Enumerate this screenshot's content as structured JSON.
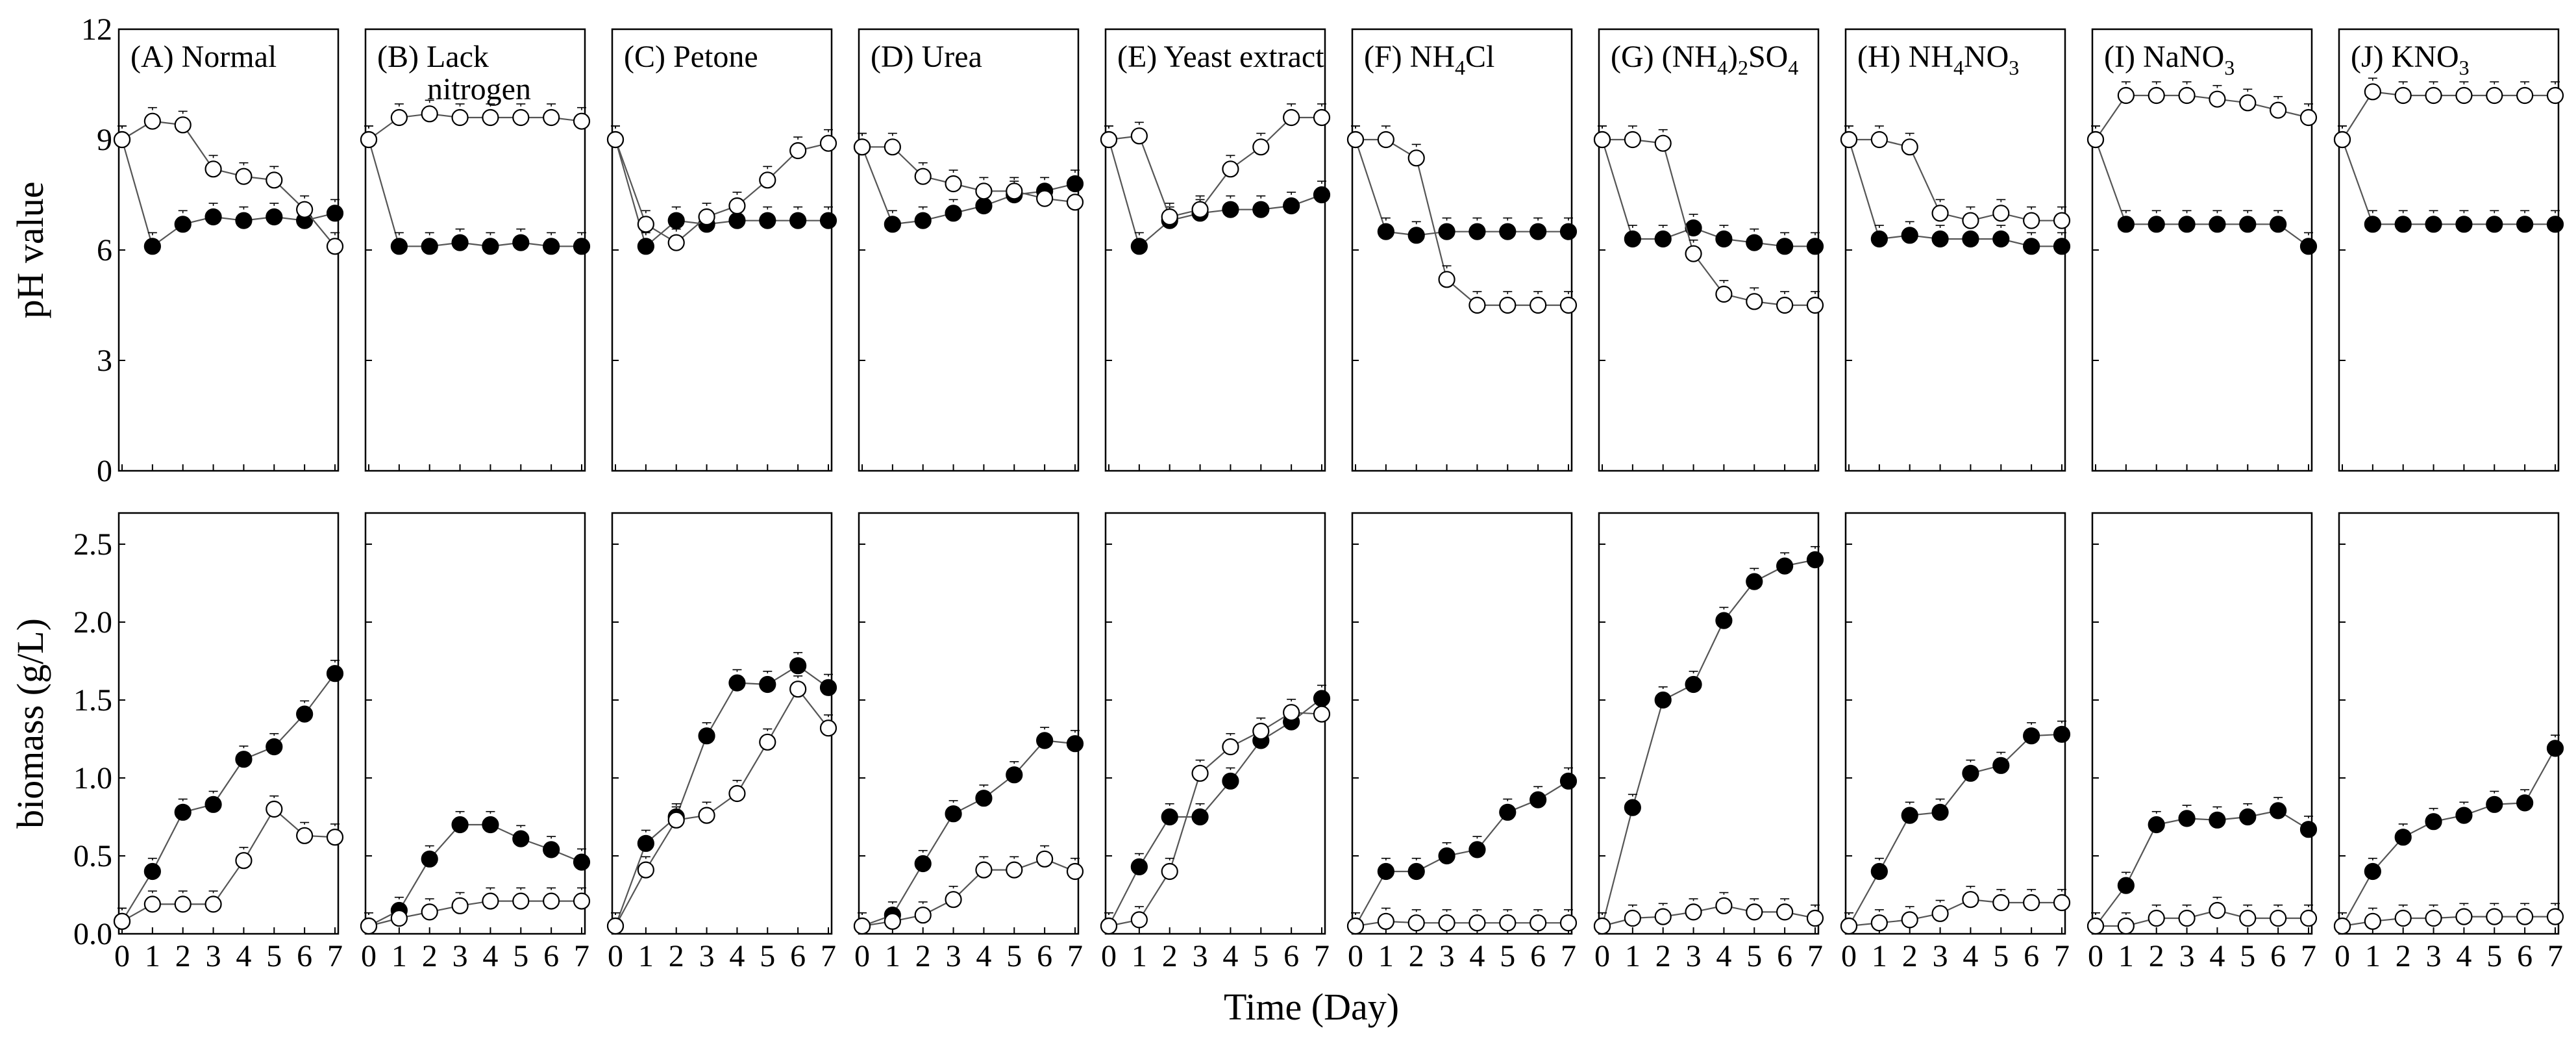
{
  "figure": {
    "xlabel": "Time (Day)",
    "ylabel_top": "pH value",
    "ylabel_bottom": "biomass (g/L)",
    "colors": {
      "filled_series": "#000000",
      "open_series": "#ffffff",
      "line": "#555555"
    }
  },
  "chart_data": [
    {
      "type": "line",
      "panel": "A",
      "title": "(A) Normal",
      "title_parts": [
        [
          "(A) Normal",
          null
        ]
      ],
      "measure": "pH value",
      "xlabel": "Time (Day)",
      "ylabel": "pH value",
      "ylim": [
        0,
        12
      ],
      "xlim": [
        0,
        7
      ],
      "x": [
        0,
        1,
        2,
        3,
        4,
        5,
        6,
        7
      ],
      "series": [
        {
          "name": "filled",
          "values": [
            9.0,
            6.1,
            6.7,
            6.9,
            6.8,
            6.9,
            6.8,
            7.0
          ]
        },
        {
          "name": "open",
          "values": [
            9.0,
            9.5,
            9.4,
            8.2,
            8.0,
            7.9,
            7.1,
            6.1
          ]
        }
      ]
    },
    {
      "type": "line",
      "panel": "B",
      "title": "(B) Lack nitrogen",
      "title_parts": [
        [
          "(B) Lack",
          null
        ],
        [
          "nitrogen",
          null
        ]
      ],
      "measure": "pH value",
      "xlabel": "Time (Day)",
      "ylabel": "pH value",
      "ylim": [
        0,
        12
      ],
      "xlim": [
        0,
        7
      ],
      "x": [
        0,
        1,
        2,
        3,
        4,
        5,
        6,
        7
      ],
      "series": [
        {
          "name": "filled",
          "values": [
            9.0,
            6.1,
            6.1,
            6.2,
            6.1,
            6.2,
            6.1,
            6.1
          ]
        },
        {
          "name": "open",
          "values": [
            9.0,
            9.6,
            9.7,
            9.6,
            9.6,
            9.6,
            9.6,
            9.5
          ]
        }
      ]
    },
    {
      "type": "line",
      "panel": "C",
      "title": "(C) Petone",
      "title_parts": [
        [
          "(C) Petone",
          null
        ]
      ],
      "measure": "pH value",
      "xlabel": "Time (Day)",
      "ylabel": "pH value",
      "ylim": [
        0,
        12
      ],
      "xlim": [
        0,
        7
      ],
      "x": [
        0,
        1,
        2,
        3,
        4,
        5,
        6,
        7
      ],
      "series": [
        {
          "name": "filled",
          "values": [
            9.0,
            6.1,
            6.8,
            6.7,
            6.8,
            6.8,
            6.8,
            6.8
          ]
        },
        {
          "name": "open",
          "values": [
            9.0,
            6.7,
            6.2,
            6.9,
            7.2,
            7.9,
            8.7,
            8.9
          ]
        }
      ]
    },
    {
      "type": "line",
      "panel": "D",
      "title": "(D) Urea",
      "title_parts": [
        [
          "(D) Urea",
          null
        ]
      ],
      "measure": "pH value",
      "xlabel": "Time (Day)",
      "ylabel": "pH value",
      "ylim": [
        0,
        12
      ],
      "xlim": [
        0,
        7
      ],
      "x": [
        0,
        1,
        2,
        3,
        4,
        5,
        6,
        7
      ],
      "series": [
        {
          "name": "filled",
          "values": [
            8.8,
            6.7,
            6.8,
            7.0,
            7.2,
            7.5,
            7.6,
            7.8
          ]
        },
        {
          "name": "open",
          "values": [
            8.8,
            8.8,
            8.0,
            7.8,
            7.6,
            7.6,
            7.4,
            7.3
          ]
        }
      ]
    },
    {
      "type": "line",
      "panel": "E",
      "title": "(E) Yeast extract",
      "title_parts": [
        [
          "(E) Yeast extract",
          null
        ]
      ],
      "measure": "pH value",
      "xlabel": "Time (Day)",
      "ylabel": "pH value",
      "ylim": [
        0,
        12
      ],
      "xlim": [
        0,
        7
      ],
      "x": [
        0,
        1,
        2,
        3,
        4,
        5,
        6,
        7
      ],
      "series": [
        {
          "name": "filled",
          "values": [
            9.0,
            6.1,
            6.8,
            7.0,
            7.1,
            7.1,
            7.2,
            7.5
          ]
        },
        {
          "name": "open",
          "values": [
            9.0,
            9.1,
            6.9,
            7.1,
            8.2,
            8.8,
            9.6,
            9.6
          ]
        }
      ]
    },
    {
      "type": "line",
      "panel": "F",
      "title": "(F) NH4Cl",
      "title_parts": [
        [
          "(F) NH",
          null
        ],
        [
          "4",
          "sub"
        ],
        [
          "Cl",
          null
        ]
      ],
      "measure": "pH value",
      "xlabel": "Time (Day)",
      "ylabel": "pH value",
      "ylim": [
        0,
        12
      ],
      "xlim": [
        0,
        7
      ],
      "x": [
        0,
        1,
        2,
        3,
        4,
        5,
        6,
        7
      ],
      "series": [
        {
          "name": "filled",
          "values": [
            9.0,
            6.5,
            6.4,
            6.5,
            6.5,
            6.5,
            6.5,
            6.5
          ]
        },
        {
          "name": "open",
          "values": [
            9.0,
            9.0,
            8.5,
            5.2,
            4.5,
            4.5,
            4.5,
            4.5
          ]
        }
      ]
    },
    {
      "type": "line",
      "panel": "G",
      "title": "(G) (NH4)2SO4",
      "title_parts": [
        [
          "(G) (NH",
          null
        ],
        [
          "4",
          "sub"
        ],
        [
          ")",
          null
        ],
        [
          "2",
          "sub"
        ],
        [
          "SO",
          null
        ],
        [
          "4",
          "sub"
        ]
      ],
      "measure": "pH value",
      "xlabel": "Time (Day)",
      "ylabel": "pH value",
      "ylim": [
        0,
        12
      ],
      "xlim": [
        0,
        7
      ],
      "x": [
        0,
        1,
        2,
        3,
        4,
        5,
        6,
        7
      ],
      "series": [
        {
          "name": "filled",
          "values": [
            9.0,
            6.3,
            6.3,
            6.6,
            6.3,
            6.2,
            6.1,
            6.1
          ]
        },
        {
          "name": "open",
          "values": [
            9.0,
            9.0,
            8.9,
            5.9,
            4.8,
            4.6,
            4.5,
            4.5
          ]
        }
      ]
    },
    {
      "type": "line",
      "panel": "H",
      "title": "(H) NH4NO3",
      "title_parts": [
        [
          "(H) NH",
          null
        ],
        [
          "4",
          "sub"
        ],
        [
          "NO",
          null
        ],
        [
          "3",
          "sub"
        ]
      ],
      "measure": "pH value",
      "xlabel": "Time (Day)",
      "ylabel": "pH value",
      "ylim": [
        0,
        12
      ],
      "xlim": [
        0,
        7
      ],
      "x": [
        0,
        1,
        2,
        3,
        4,
        5,
        6,
        7
      ],
      "series": [
        {
          "name": "filled",
          "values": [
            9.0,
            6.3,
            6.4,
            6.3,
            6.3,
            6.3,
            6.1,
            6.1
          ]
        },
        {
          "name": "open",
          "values": [
            9.0,
            9.0,
            8.8,
            7.0,
            6.8,
            7.0,
            6.8,
            6.8
          ]
        }
      ]
    },
    {
      "type": "line",
      "panel": "I",
      "title": "(I) NaNO3",
      "title_parts": [
        [
          "(I) NaNO",
          null
        ],
        [
          "3",
          "sub"
        ]
      ],
      "measure": "pH value",
      "xlabel": "Time (Day)",
      "ylabel": "pH value",
      "ylim": [
        0,
        12
      ],
      "xlim": [
        0,
        7
      ],
      "x": [
        0,
        1,
        2,
        3,
        4,
        5,
        6,
        7
      ],
      "series": [
        {
          "name": "filled",
          "values": [
            9.0,
            6.7,
            6.7,
            6.7,
            6.7,
            6.7,
            6.7,
            6.1
          ]
        },
        {
          "name": "open",
          "values": [
            9.0,
            10.2,
            10.2,
            10.2,
            10.1,
            10.0,
            9.8,
            9.6
          ]
        }
      ]
    },
    {
      "type": "line",
      "panel": "J",
      "title": "(J) KNO3",
      "title_parts": [
        [
          "(J) KNO",
          null
        ],
        [
          "3",
          "sub"
        ]
      ],
      "measure": "pH value",
      "xlabel": "Time (Day)",
      "ylabel": "pH value",
      "ylim": [
        0,
        12
      ],
      "xlim": [
        0,
        7
      ],
      "x": [
        0,
        1,
        2,
        3,
        4,
        5,
        6,
        7
      ],
      "series": [
        {
          "name": "filled",
          "values": [
            9.0,
            6.7,
            6.7,
            6.7,
            6.7,
            6.7,
            6.7,
            6.7
          ]
        },
        {
          "name": "open",
          "values": [
            9.0,
            10.3,
            10.2,
            10.2,
            10.2,
            10.2,
            10.2,
            10.2
          ]
        }
      ]
    },
    {
      "type": "line",
      "panel": "A",
      "measure": "biomass (g/L)",
      "xlabel": "Time (Day)",
      "ylabel": "biomass (g/L)",
      "ylim": [
        0,
        2.7
      ],
      "xlim": [
        0,
        7
      ],
      "x": [
        0,
        1,
        2,
        3,
        4,
        5,
        6,
        7
      ],
      "series": [
        {
          "name": "filled",
          "values": [
            0.08,
            0.4,
            0.78,
            0.83,
            1.12,
            1.2,
            1.41,
            1.67
          ]
        },
        {
          "name": "open",
          "values": [
            0.08,
            0.19,
            0.19,
            0.19,
            0.47,
            0.8,
            0.63,
            0.62
          ]
        }
      ]
    },
    {
      "type": "line",
      "panel": "B",
      "measure": "biomass (g/L)",
      "xlabel": "Time (Day)",
      "ylabel": "biomass (g/L)",
      "ylim": [
        0,
        2.7
      ],
      "xlim": [
        0,
        7
      ],
      "x": [
        0,
        1,
        2,
        3,
        4,
        5,
        6,
        7
      ],
      "series": [
        {
          "name": "filled",
          "values": [
            0.05,
            0.15,
            0.48,
            0.7,
            0.7,
            0.61,
            0.54,
            0.46
          ]
        },
        {
          "name": "open",
          "values": [
            0.05,
            0.1,
            0.14,
            0.18,
            0.21,
            0.21,
            0.21,
            0.21
          ]
        }
      ]
    },
    {
      "type": "line",
      "panel": "C",
      "measure": "biomass (g/L)",
      "xlabel": "Time (Day)",
      "ylabel": "biomass (g/L)",
      "ylim": [
        0,
        2.7
      ],
      "xlim": [
        0,
        7
      ],
      "x": [
        0,
        1,
        2,
        3,
        4,
        5,
        6,
        7
      ],
      "series": [
        {
          "name": "filled",
          "values": [
            0.05,
            0.58,
            0.75,
            1.27,
            1.61,
            1.6,
            1.72,
            1.58
          ]
        },
        {
          "name": "open",
          "values": [
            0.05,
            0.41,
            0.73,
            0.76,
            0.9,
            1.23,
            1.57,
            1.32
          ]
        }
      ]
    },
    {
      "type": "line",
      "panel": "D",
      "measure": "biomass (g/L)",
      "xlabel": "Time (Day)",
      "ylabel": "biomass (g/L)",
      "ylim": [
        0,
        2.7
      ],
      "xlim": [
        0,
        7
      ],
      "x": [
        0,
        1,
        2,
        3,
        4,
        5,
        6,
        7
      ],
      "series": [
        {
          "name": "filled",
          "values": [
            0.05,
            0.12,
            0.45,
            0.77,
            0.87,
            1.02,
            1.24,
            1.22
          ]
        },
        {
          "name": "open",
          "values": [
            0.05,
            0.08,
            0.12,
            0.22,
            0.41,
            0.41,
            0.48,
            0.4
          ]
        }
      ]
    },
    {
      "type": "line",
      "panel": "E",
      "measure": "biomass (g/L)",
      "xlabel": "Time (Day)",
      "ylabel": "biomass (g/L)",
      "ylim": [
        0,
        2.7
      ],
      "xlim": [
        0,
        7
      ],
      "x": [
        0,
        1,
        2,
        3,
        4,
        5,
        6,
        7
      ],
      "series": [
        {
          "name": "filled",
          "values": [
            0.05,
            0.43,
            0.75,
            0.75,
            0.98,
            1.24,
            1.36,
            1.51
          ]
        },
        {
          "name": "open",
          "values": [
            0.05,
            0.09,
            0.4,
            1.03,
            1.2,
            1.3,
            1.42,
            1.41
          ]
        }
      ]
    },
    {
      "type": "line",
      "panel": "F",
      "measure": "biomass (g/L)",
      "xlabel": "Time (Day)",
      "ylabel": "biomass (g/L)",
      "ylim": [
        0,
        2.7
      ],
      "xlim": [
        0,
        7
      ],
      "x": [
        0,
        1,
        2,
        3,
        4,
        5,
        6,
        7
      ],
      "series": [
        {
          "name": "filled",
          "values": [
            0.05,
            0.4,
            0.4,
            0.5,
            0.54,
            0.78,
            0.86,
            0.98
          ]
        },
        {
          "name": "open",
          "values": [
            0.05,
            0.08,
            0.07,
            0.07,
            0.07,
            0.07,
            0.07,
            0.07
          ]
        }
      ]
    },
    {
      "type": "line",
      "panel": "G",
      "measure": "biomass (g/L)",
      "xlabel": "Time (Day)",
      "ylabel": "biomass (g/L)",
      "ylim": [
        0,
        2.7
      ],
      "xlim": [
        0,
        7
      ],
      "x": [
        0,
        1,
        2,
        3,
        4,
        5,
        6,
        7
      ],
      "series": [
        {
          "name": "filled",
          "values": [
            0.05,
            0.81,
            1.5,
            1.6,
            2.01,
            2.26,
            2.36,
            2.4
          ]
        },
        {
          "name": "open",
          "values": [
            0.05,
            0.1,
            0.11,
            0.14,
            0.18,
            0.14,
            0.14,
            0.1
          ]
        }
      ]
    },
    {
      "type": "line",
      "panel": "H",
      "measure": "biomass (g/L)",
      "xlabel": "Time (Day)",
      "ylabel": "biomass (g/L)",
      "ylim": [
        0,
        2.7
      ],
      "xlim": [
        0,
        7
      ],
      "x": [
        0,
        1,
        2,
        3,
        4,
        5,
        6,
        7
      ],
      "series": [
        {
          "name": "filled",
          "values": [
            0.05,
            0.4,
            0.76,
            0.78,
            1.03,
            1.08,
            1.27,
            1.28
          ]
        },
        {
          "name": "open",
          "values": [
            0.05,
            0.07,
            0.09,
            0.13,
            0.22,
            0.2,
            0.2,
            0.2
          ]
        }
      ]
    },
    {
      "type": "line",
      "panel": "I",
      "measure": "biomass (g/L)",
      "xlabel": "Time (Day)",
      "ylabel": "biomass (g/L)",
      "ylim": [
        0,
        2.7
      ],
      "xlim": [
        0,
        7
      ],
      "x": [
        0,
        1,
        2,
        3,
        4,
        5,
        6,
        7
      ],
      "series": [
        {
          "name": "filled",
          "values": [
            0.05,
            0.31,
            0.7,
            0.74,
            0.73,
            0.75,
            0.79,
            0.67
          ]
        },
        {
          "name": "open",
          "values": [
            0.05,
            0.05,
            0.1,
            0.1,
            0.15,
            0.1,
            0.1,
            0.1
          ]
        }
      ]
    },
    {
      "type": "line",
      "panel": "J",
      "measure": "biomass (g/L)",
      "xlabel": "Time (Day)",
      "ylabel": "biomass (g/L)",
      "ylim": [
        0,
        2.7
      ],
      "xlim": [
        0,
        7
      ],
      "x": [
        0,
        1,
        2,
        3,
        4,
        5,
        6,
        7
      ],
      "series": [
        {
          "name": "filled",
          "values": [
            0.05,
            0.4,
            0.62,
            0.72,
            0.76,
            0.83,
            0.84,
            1.19
          ]
        },
        {
          "name": "open",
          "values": [
            0.05,
            0.08,
            0.1,
            0.1,
            0.11,
            0.11,
            0.11,
            0.11
          ]
        }
      ]
    }
  ],
  "axes": {
    "x_ticks": [
      "0",
      "1",
      "2",
      "3",
      "4",
      "5",
      "6",
      "7"
    ],
    "ph_ticks": [
      {
        "v": 0,
        "t": "0"
      },
      {
        "v": 3,
        "t": "3"
      },
      {
        "v": 6,
        "t": "6"
      },
      {
        "v": 9,
        "t": "9"
      },
      {
        "v": 12,
        "t": "12"
      }
    ],
    "bio_ticks": [
      {
        "v": 0,
        "t": "0.0"
      },
      {
        "v": 0.5,
        "t": "0.5"
      },
      {
        "v": 1.0,
        "t": "1.0"
      },
      {
        "v": 1.5,
        "t": "1.5"
      },
      {
        "v": 2.0,
        "t": "2.0"
      },
      {
        "v": 2.5,
        "t": "2.5"
      }
    ]
  }
}
